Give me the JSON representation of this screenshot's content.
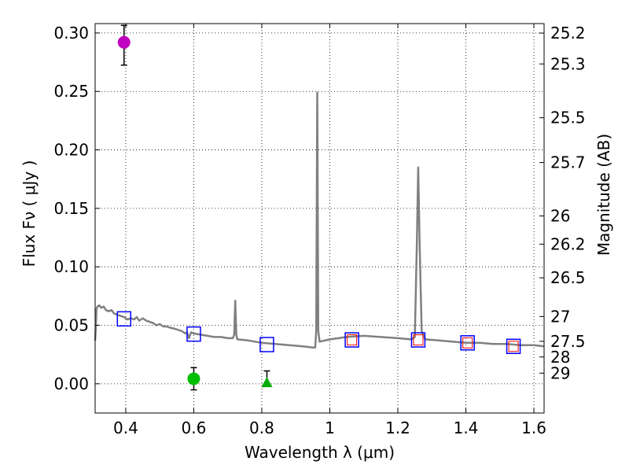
{
  "chart_data": {
    "type": "scatter",
    "xlabel": "Wavelength  λ (μm)",
    "ylabel": "Flux  Fν  ( μJy )",
    "ylabel_right": "Magnitude (AB)",
    "xlim": [
      0.31,
      1.63
    ],
    "ylim": [
      -0.025,
      0.308
    ],
    "grid": true,
    "x_ticks": [
      0.4,
      0.6,
      0.8,
      1.0,
      1.2,
      1.4,
      1.6
    ],
    "x_tick_labels": [
      "0.4",
      "0.6",
      "0.8",
      "1",
      "1.2",
      "1.4",
      "1.6"
    ],
    "y_ticks": [
      0.0,
      0.05,
      0.1,
      0.15,
      0.2,
      0.25,
      0.3
    ],
    "y_tick_labels": [
      "0.00",
      "0.05",
      "0.10",
      "0.15",
      "0.20",
      "0.25",
      "0.30"
    ],
    "magnitude_ticks": [
      {
        "label": "25.2",
        "flux": 0.2999
      },
      {
        "label": "25.3",
        "flux": 0.2735
      },
      {
        "label": "25.5",
        "flux": 0.2275
      },
      {
        "label": "25.7",
        "flux": 0.1892
      },
      {
        "label": "26",
        "flux": 0.1435
      },
      {
        "label": "26.2",
        "flux": 0.1194
      },
      {
        "label": "26.5",
        "flux": 0.0906
      },
      {
        "label": "27",
        "flux": 0.0575
      },
      {
        "label": "27.5",
        "flux": 0.0363
      },
      {
        "label": "28",
        "flux": 0.0229
      },
      {
        "label": "29",
        "flux": 0.0091
      }
    ],
    "sed_model": {
      "name": "model SED",
      "color": "#808080",
      "points": [
        [
          0.31,
          0.037
        ],
        [
          0.312,
          0.048
        ],
        [
          0.314,
          0.064
        ],
        [
          0.317,
          0.066
        ],
        [
          0.322,
          0.067
        ],
        [
          0.328,
          0.065
        ],
        [
          0.335,
          0.066
        ],
        [
          0.342,
          0.063
        ],
        [
          0.35,
          0.062
        ],
        [
          0.358,
          0.063
        ],
        [
          0.366,
          0.06
        ],
        [
          0.375,
          0.059
        ],
        [
          0.385,
          0.058
        ],
        [
          0.395,
          0.057
        ],
        [
          0.405,
          0.055
        ],
        [
          0.415,
          0.056
        ],
        [
          0.425,
          0.055
        ],
        [
          0.432,
          0.057
        ],
        [
          0.44,
          0.054
        ],
        [
          0.45,
          0.056
        ],
        [
          0.46,
          0.054
        ],
        [
          0.47,
          0.053
        ],
        [
          0.48,
          0.052
        ],
        [
          0.49,
          0.05
        ],
        [
          0.5,
          0.051
        ],
        [
          0.51,
          0.049
        ],
        [
          0.52,
          0.049
        ],
        [
          0.53,
          0.048
        ],
        [
          0.545,
          0.047
        ],
        [
          0.555,
          0.046
        ],
        [
          0.565,
          0.045
        ],
        [
          0.575,
          0.043
        ],
        [
          0.58,
          0.044
        ],
        [
          0.586,
          0.039
        ],
        [
          0.592,
          0.044
        ],
        [
          0.6,
          0.043
        ],
        [
          0.62,
          0.042
        ],
        [
          0.64,
          0.041
        ],
        [
          0.66,
          0.04
        ],
        [
          0.68,
          0.04
        ],
        [
          0.7,
          0.039
        ],
        [
          0.715,
          0.039
        ],
        [
          0.719,
          0.042
        ],
        [
          0.722,
          0.071
        ],
        [
          0.725,
          0.042
        ],
        [
          0.728,
          0.038
        ],
        [
          0.76,
          0.037
        ],
        [
          0.8,
          0.035
        ],
        [
          0.84,
          0.034
        ],
        [
          0.88,
          0.033
        ],
        [
          0.92,
          0.032
        ],
        [
          0.95,
          0.031
        ],
        [
          0.957,
          0.031
        ],
        [
          0.96,
          0.045
        ],
        [
          0.963,
          0.249
        ],
        [
          0.966,
          0.045
        ],
        [
          0.97,
          0.036
        ],
        [
          1.0,
          0.038
        ],
        [
          1.05,
          0.04
        ],
        [
          1.1,
          0.041
        ],
        [
          1.15,
          0.04
        ],
        [
          1.2,
          0.039
        ],
        [
          1.24,
          0.038
        ],
        [
          1.25,
          0.04
        ],
        [
          1.256,
          0.12
        ],
        [
          1.26,
          0.185
        ],
        [
          1.264,
          0.12
        ],
        [
          1.27,
          0.045
        ],
        [
          1.28,
          0.038
        ],
        [
          1.32,
          0.037
        ],
        [
          1.36,
          0.036
        ],
        [
          1.4,
          0.035
        ],
        [
          1.44,
          0.035
        ],
        [
          1.48,
          0.034
        ],
        [
          1.52,
          0.034
        ],
        [
          1.56,
          0.033
        ],
        [
          1.6,
          0.033
        ],
        [
          1.63,
          0.032
        ]
      ]
    },
    "series": [
      {
        "name": "blue squares",
        "marker": "square-open",
        "color": "#0000ff",
        "points": [
          [
            0.395,
            0.0555
          ],
          [
            0.6,
            0.0425
          ],
          [
            0.815,
            0.0335
          ],
          [
            1.065,
            0.0375
          ],
          [
            1.26,
            0.0375
          ],
          [
            1.405,
            0.035
          ],
          [
            1.54,
            0.032
          ]
        ]
      },
      {
        "name": "red squares",
        "marker": "square-open-small",
        "color": "#ff0000",
        "points": [
          [
            1.065,
            0.0375
          ],
          [
            1.26,
            0.0375
          ],
          [
            1.405,
            0.035
          ],
          [
            1.54,
            0.032
          ]
        ]
      },
      {
        "name": "magenta point",
        "marker": "circle",
        "color": "#bf00bf",
        "points": [
          [
            0.395,
            0.292
          ]
        ],
        "err_low": [
          0.0195
        ],
        "err_high": [
          0.0145
        ]
      },
      {
        "name": "green circle",
        "marker": "circle",
        "color": "#00bf00",
        "points": [
          [
            0.6,
            0.0043
          ]
        ],
        "err_low": [
          0.0095
        ],
        "err_high": [
          0.0095
        ]
      },
      {
        "name": "green triangle",
        "marker": "triangle",
        "color": "#00aa00",
        "points": [
          [
            0.815,
            0.0005
          ]
        ],
        "err_low": [
          0.001
        ],
        "err_high": [
          0.0105
        ]
      }
    ]
  }
}
